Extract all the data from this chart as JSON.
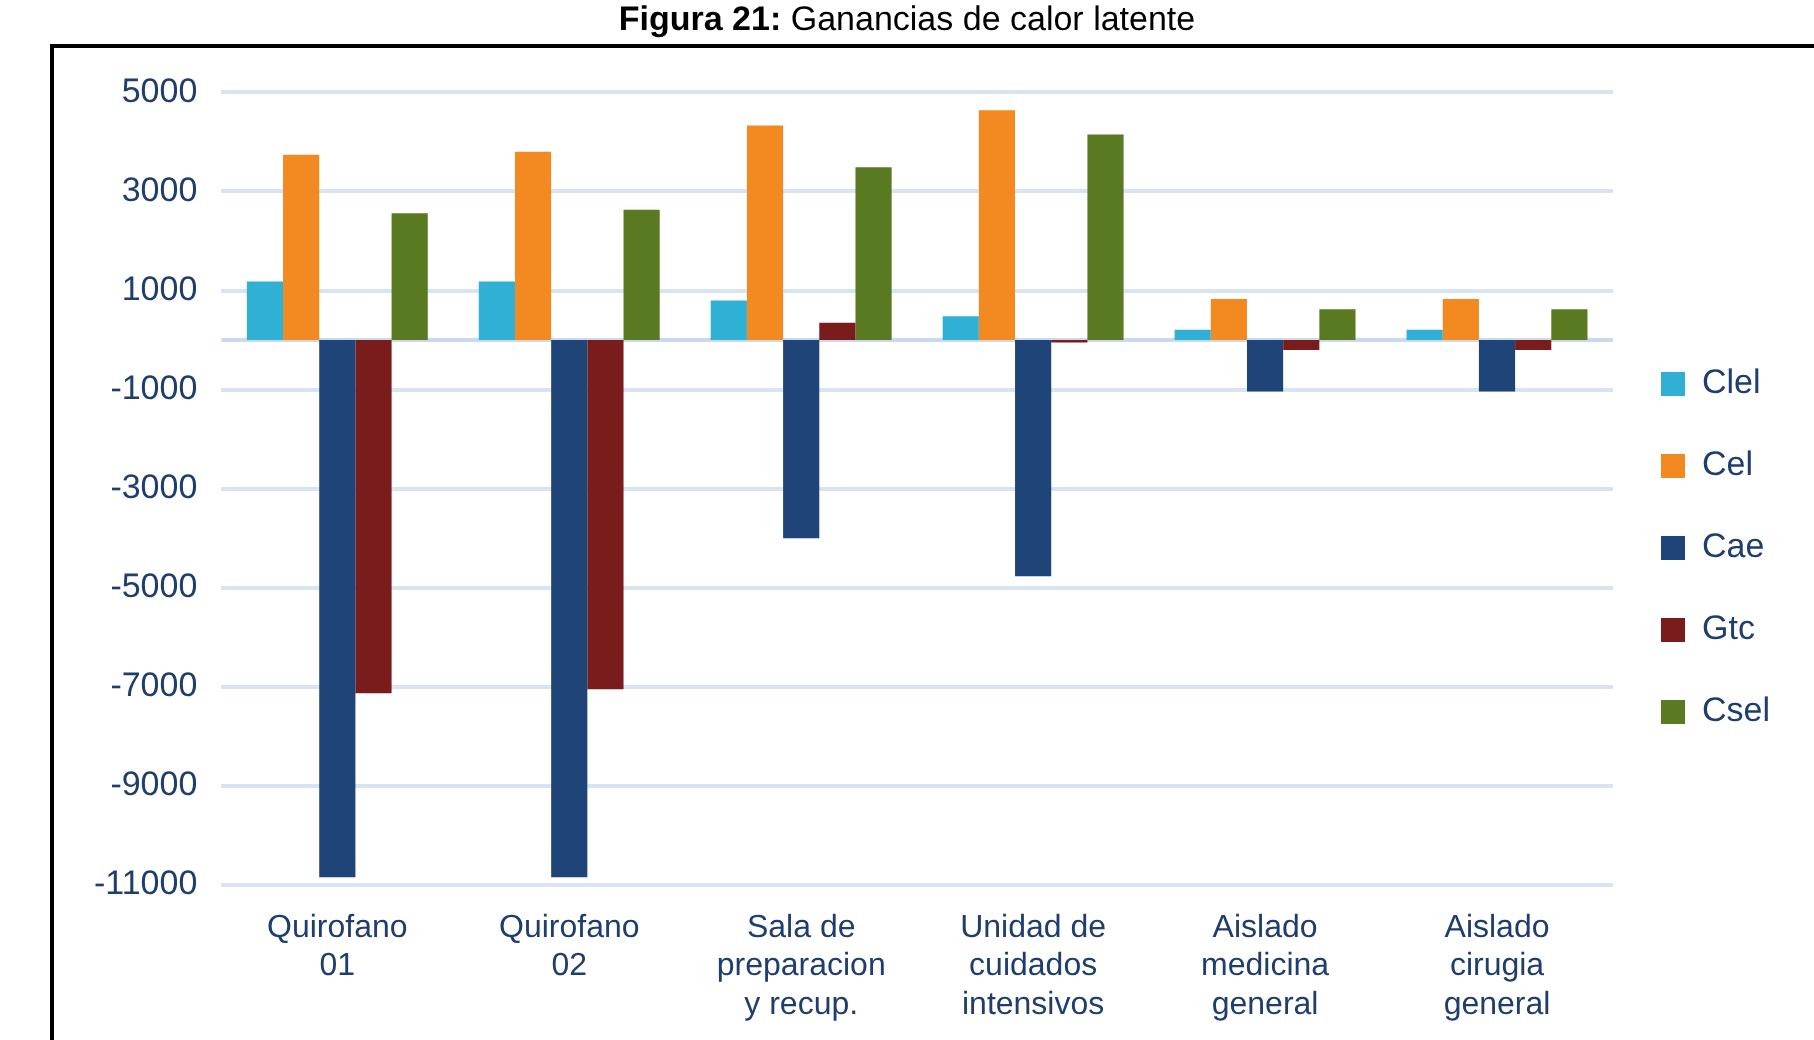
{
  "chart_data": {
    "type": "bar",
    "title": "Figura 21: Ganancias de calor latente",
    "categories": [
      "Quirofano 01",
      "Quirofano 02",
      "Sala de preparacion y recup.",
      "Unidad de cuidados intensivos",
      "Aislado medicina general",
      "Aislado cirugia general"
    ],
    "series": [
      {
        "name": "Clel",
        "color": "#31b0d5",
        "values": [
          1180,
          1180,
          800,
          480,
          210,
          210
        ]
      },
      {
        "name": "Cel",
        "color": "#f28a21",
        "values": [
          3740,
          3800,
          4330,
          4640,
          830,
          830
        ]
      },
      {
        "name": "Cae",
        "color": "#1f4477",
        "values": [
          -10850,
          -10850,
          -4000,
          -4770,
          -1040,
          -1040
        ]
      },
      {
        "name": "Gtc",
        "color": "#7a1c1c",
        "values": [
          -7130,
          -7050,
          350,
          -50,
          -200,
          -200
        ]
      },
      {
        "name": "Csel",
        "color": "#5a7a22",
        "values": [
          2560,
          2630,
          3490,
          4150,
          620,
          620
        ]
      }
    ],
    "ylim": [
      -11000,
      5000
    ],
    "yticks": [
      -11000,
      -9000,
      -7000,
      -5000,
      -3000,
      -1000,
      1000,
      3000,
      5000
    ],
    "grid": "y",
    "legend": "right"
  }
}
